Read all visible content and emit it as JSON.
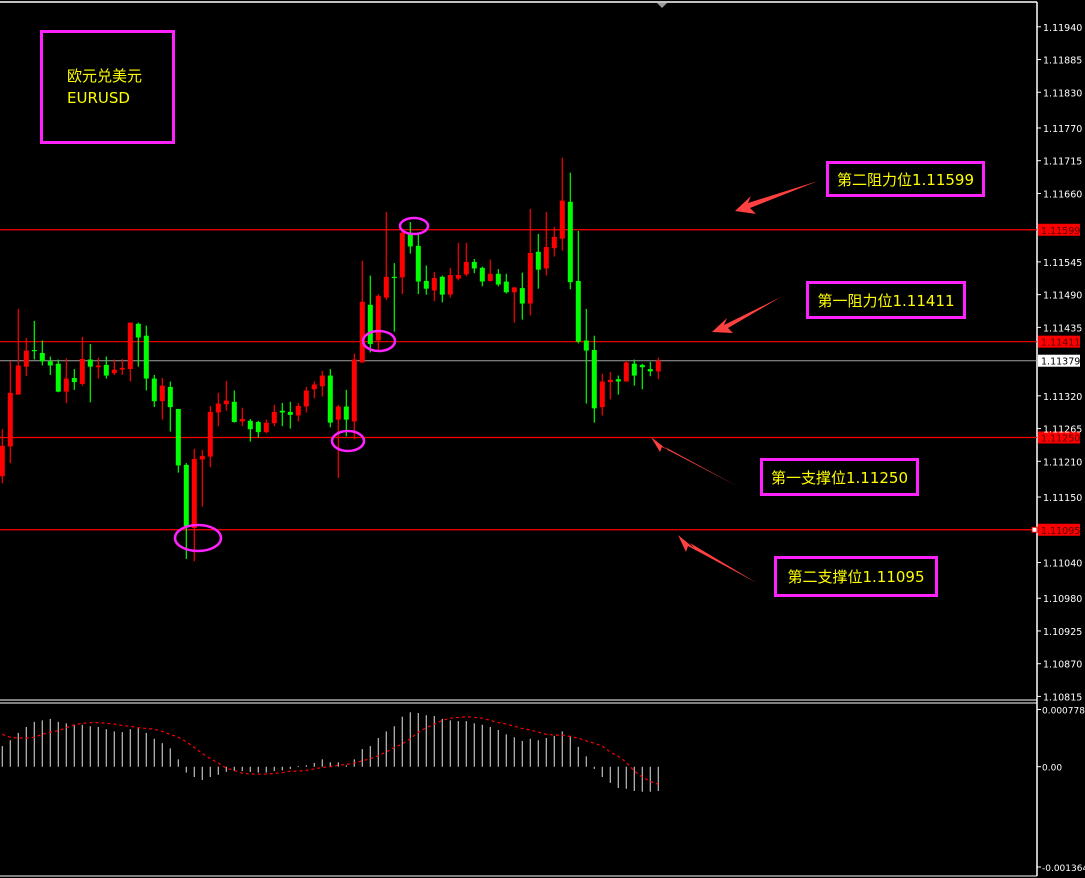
{
  "title_box": {
    "line1": "欧元兑美元",
    "line2": "EURUSD"
  },
  "annotations": [
    {
      "label": "第二阻力位1.11599",
      "price": 1.11599
    },
    {
      "label": "第一阻力位1.11411",
      "price": 1.11411
    },
    {
      "label": "第一支撑位1.11250",
      "price": 1.1125
    },
    {
      "label": "第二支撑位1.11095",
      "price": 1.11095
    }
  ],
  "colors": {
    "background": "#000000",
    "up_candle": "#ff0000",
    "down_candle": "#00ff00",
    "level_line": "#ff0000",
    "bid_line": "#a0a0a0",
    "annotation_border": "#ff22ff",
    "annotation_text": "#ffff00",
    "arrow": "#ff4040",
    "macd_histogram": "#c0c0c0",
    "macd_signal": "#ff0000"
  },
  "chart_data": [
    {
      "type": "candlestick",
      "symbol": "EURUSD",
      "ylim": [
        1.10809,
        1.11985
      ],
      "y_ticks": [
        "1.11940",
        "1.11885",
        "1.11830",
        "1.11770",
        "1.11715",
        "1.11660",
        "1.11545",
        "1.11490",
        "1.11435",
        "1.11320",
        "1.11265",
        "1.11210",
        "1.11150",
        "1.11040",
        "1.10980",
        "1.10925",
        "1.10870",
        "1.10815"
      ],
      "levels": [
        {
          "price": 1.11599,
          "label": "1.11599",
          "kind": "resistance-2"
        },
        {
          "price": 1.11411,
          "label": "1.11411",
          "kind": "resistance-1"
        },
        {
          "price": 1.1125,
          "label": "1.11250",
          "kind": "support-1"
        },
        {
          "price": 1.11095,
          "label": "1.11095",
          "kind": "support-2"
        }
      ],
      "bid": {
        "price": 1.11379,
        "label": "1.11379"
      },
      "ohlc": [
        [
          1.11185,
          1.11264,
          1.11173,
          1.11236
        ],
        [
          1.11235,
          1.11378,
          1.11207,
          1.11325
        ],
        [
          1.11322,
          1.11466,
          1.11322,
          1.11371
        ],
        [
          1.11369,
          1.11417,
          1.11353,
          1.11396
        ],
        [
          1.11397,
          1.11446,
          1.11381,
          1.11395
        ],
        [
          1.11392,
          1.11413,
          1.11371,
          1.11378
        ],
        [
          1.11378,
          1.11386,
          1.11355,
          1.11371
        ],
        [
          1.11374,
          1.11381,
          1.11326,
          1.11327
        ],
        [
          1.11327,
          1.11383,
          1.11308,
          1.11349
        ],
        [
          1.1135,
          1.11365,
          1.1133,
          1.11343
        ],
        [
          1.1134,
          1.11419,
          1.11337,
          1.11382
        ],
        [
          1.11381,
          1.11407,
          1.11309,
          1.11369
        ],
        [
          1.11368,
          1.11384,
          1.11349,
          1.11371
        ],
        [
          1.11372,
          1.11386,
          1.11349,
          1.11354
        ],
        [
          1.11358,
          1.11381,
          1.11355,
          1.11364
        ],
        [
          1.11364,
          1.11382,
          1.11355,
          1.11367
        ],
        [
          1.11365,
          1.11443,
          1.11344,
          1.11443
        ],
        [
          1.11441,
          1.11443,
          1.11369,
          1.11418
        ],
        [
          1.11421,
          1.11438,
          1.11329,
          1.11349
        ],
        [
          1.11349,
          1.11355,
          1.11301,
          1.11311
        ],
        [
          1.11311,
          1.1135,
          1.1128,
          1.11337
        ],
        [
          1.11335,
          1.11344,
          1.1126,
          1.11301
        ],
        [
          1.11298,
          1.11298,
          1.11191,
          1.11203
        ],
        [
          1.11204,
          1.11207,
          1.11046,
          1.11101
        ],
        [
          1.11098,
          1.11231,
          1.11042,
          1.11214
        ],
        [
          1.11213,
          1.11229,
          1.11134,
          1.11219
        ],
        [
          1.11218,
          1.11303,
          1.112,
          1.11293
        ],
        [
          1.11292,
          1.11325,
          1.11269,
          1.11307
        ],
        [
          1.11306,
          1.11345,
          1.11295,
          1.11312
        ],
        [
          1.1131,
          1.11329,
          1.11275,
          1.11276
        ],
        [
          1.11277,
          1.113,
          1.11269,
          1.11281
        ],
        [
          1.11278,
          1.11281,
          1.11243,
          1.11264
        ],
        [
          1.11276,
          1.11278,
          1.1125,
          1.11259
        ],
        [
          1.11259,
          1.1128,
          1.11257,
          1.11275
        ],
        [
          1.11274,
          1.11305,
          1.11269,
          1.11293
        ],
        [
          1.11295,
          1.11308,
          1.11269,
          1.11292
        ],
        [
          1.11293,
          1.1131,
          1.11265,
          1.11288
        ],
        [
          1.11287,
          1.11308,
          1.11277,
          1.11303
        ],
        [
          1.11302,
          1.11335,
          1.11292,
          1.11329
        ],
        [
          1.11331,
          1.11344,
          1.11316,
          1.11339
        ],
        [
          1.11336,
          1.11362,
          1.11319,
          1.11354
        ],
        [
          1.11354,
          1.11365,
          1.11267,
          1.11275
        ],
        [
          1.1128,
          1.11305,
          1.11182,
          1.11302
        ],
        [
          1.11302,
          1.1133,
          1.11252,
          1.1128
        ],
        [
          1.11277,
          1.11391,
          1.11247,
          1.11381
        ],
        [
          1.11376,
          1.11547,
          1.11376,
          1.11478
        ],
        [
          1.11473,
          1.11522,
          1.11393,
          1.11407
        ],
        [
          1.11413,
          1.11491,
          1.11397,
          1.11488
        ],
        [
          1.11485,
          1.11629,
          1.11481,
          1.1152
        ],
        [
          1.1152,
          1.11543,
          1.11428,
          1.11518
        ],
        [
          1.11519,
          1.11599,
          1.11491,
          1.11594
        ],
        [
          1.11594,
          1.11612,
          1.11559,
          1.11571
        ],
        [
          1.11572,
          1.11592,
          1.11491,
          1.11512
        ],
        [
          1.11513,
          1.11539,
          1.1149,
          1.115
        ],
        [
          1.11497,
          1.11528,
          1.11479,
          1.11518
        ],
        [
          1.1152,
          1.11522,
          1.11477,
          1.1149
        ],
        [
          1.1149,
          1.11535,
          1.11485,
          1.11523
        ],
        [
          1.11517,
          1.11577,
          1.11514,
          1.11523
        ],
        [
          1.11524,
          1.11577,
          1.11521,
          1.11545
        ],
        [
          1.11545,
          1.1155,
          1.11526,
          1.11534
        ],
        [
          1.11535,
          1.11537,
          1.11504,
          1.11512
        ],
        [
          1.11513,
          1.11549,
          1.11512,
          1.11525
        ],
        [
          1.11525,
          1.11533,
          1.11504,
          1.11507
        ],
        [
          1.11512,
          1.11525,
          1.11492,
          1.11494
        ],
        [
          1.11494,
          1.11503,
          1.11443,
          1.11502
        ],
        [
          1.11501,
          1.11527,
          1.11448,
          1.11475
        ],
        [
          1.11475,
          1.11634,
          1.11455,
          1.1156
        ],
        [
          1.11562,
          1.11592,
          1.115,
          1.11532
        ],
        [
          1.11534,
          1.11629,
          1.11522,
          1.1157
        ],
        [
          1.11568,
          1.11604,
          1.11554,
          1.11587
        ],
        [
          1.11584,
          1.1172,
          1.11564,
          1.11648
        ],
        [
          1.11646,
          1.11695,
          1.11499,
          1.11511
        ],
        [
          1.11513,
          1.11597,
          1.11408,
          1.11411
        ],
        [
          1.11413,
          1.11466,
          1.11307,
          1.11396
        ],
        [
          1.11397,
          1.11421,
          1.11275,
          1.11299
        ],
        [
          1.11301,
          1.11357,
          1.11287,
          1.11344
        ],
        [
          1.11343,
          1.1136,
          1.11314,
          1.11347
        ],
        [
          1.11348,
          1.11354,
          1.11322,
          1.11344
        ],
        [
          1.11344,
          1.11379,
          1.11344,
          1.11376
        ],
        [
          1.11374,
          1.11381,
          1.11337,
          1.11354
        ],
        [
          1.11372,
          1.11374,
          1.11331,
          1.11368
        ],
        [
          1.11365,
          1.11377,
          1.11353,
          1.11361
        ],
        [
          1.11361,
          1.11384,
          1.11348,
          1.11379
        ]
      ]
    },
    {
      "type": "bar+line",
      "indicator": "MACD",
      "ylim": [
        -0.001364,
        0.000778
      ],
      "y_ticks": [
        "0.000778",
        "0.00",
        "-0.001364"
      ],
      "histogram": [
        0.00028,
        0.00036,
        0.00046,
        0.00054,
        0.00061,
        0.00063,
        0.00065,
        0.00061,
        0.00059,
        0.00057,
        0.00057,
        0.00055,
        0.00054,
        0.00051,
        0.00048,
        0.00047,
        0.00051,
        0.00053,
        0.00046,
        0.00038,
        0.00032,
        0.00025,
        0.0001,
        -8e-05,
        -0.00014,
        -0.00018,
        -0.00014,
        -0.00011,
        -7e-05,
        -6e-05,
        -6e-05,
        -7e-05,
        -8e-05,
        -8e-05,
        -6e-05,
        -5e-05,
        -3e-05,
        1e-05,
        2e-05,
        5e-05,
        0.0001,
        6e-05,
        6e-05,
        2e-05,
        0.0001,
        0.00024,
        0.00028,
        0.00039,
        0.00048,
        0.00055,
        0.00068,
        0.00074,
        0.00073,
        0.0007,
        0.00069,
        0.00065,
        0.00063,
        0.00062,
        0.00062,
        0.00059,
        0.00057,
        0.00054,
        0.0005,
        0.00044,
        0.0004,
        0.00035,
        0.00038,
        0.00036,
        0.00039,
        0.00042,
        0.00048,
        0.00042,
        0.00027,
        0.00014,
        -3e-05,
        -0.00014,
        -0.00022,
        -0.00029,
        -0.0003,
        -0.00033,
        -0.00034,
        -0.00034,
        -0.00033
      ],
      "signal": [
        0.00044,
        0.0004,
        0.00039,
        0.00039,
        0.0004,
        0.00044,
        0.00047,
        0.00049,
        0.00053,
        0.00057,
        0.00059,
        0.0006,
        0.0006,
        0.00059,
        0.00058,
        0.00056,
        0.00055,
        0.00053,
        0.00052,
        0.00051,
        0.00048,
        0.00044,
        0.0004,
        0.00034,
        0.00026,
        0.00018,
        0.00011,
        5e-05,
        -2e-05,
        -5e-05,
        -9e-05,
        -0.0001,
        -0.0001,
        -0.0001,
        -9e-05,
        -8e-05,
        -6e-05,
        -6e-05,
        -5e-05,
        -3e-05,
        -1e-05,
        0.0,
        2e-05,
        3e-05,
        5e-05,
        8e-05,
        0.00011,
        0.00015,
        0.0002,
        0.00026,
        0.00031,
        0.00038,
        0.00047,
        0.00053,
        0.00058,
        0.00063,
        0.00066,
        0.00067,
        0.00068,
        0.00067,
        0.00066,
        0.00063,
        0.0006,
        0.00058,
        0.00055,
        0.00052,
        0.0005,
        0.00047,
        0.00044,
        0.00043,
        0.00043,
        0.00041,
        0.00039,
        0.00035,
        0.00032,
        0.00028,
        0.0002,
        0.00014,
        6e-05,
        -6e-05,
        -0.00014,
        -0.0002,
        -0.00024
      ]
    }
  ]
}
